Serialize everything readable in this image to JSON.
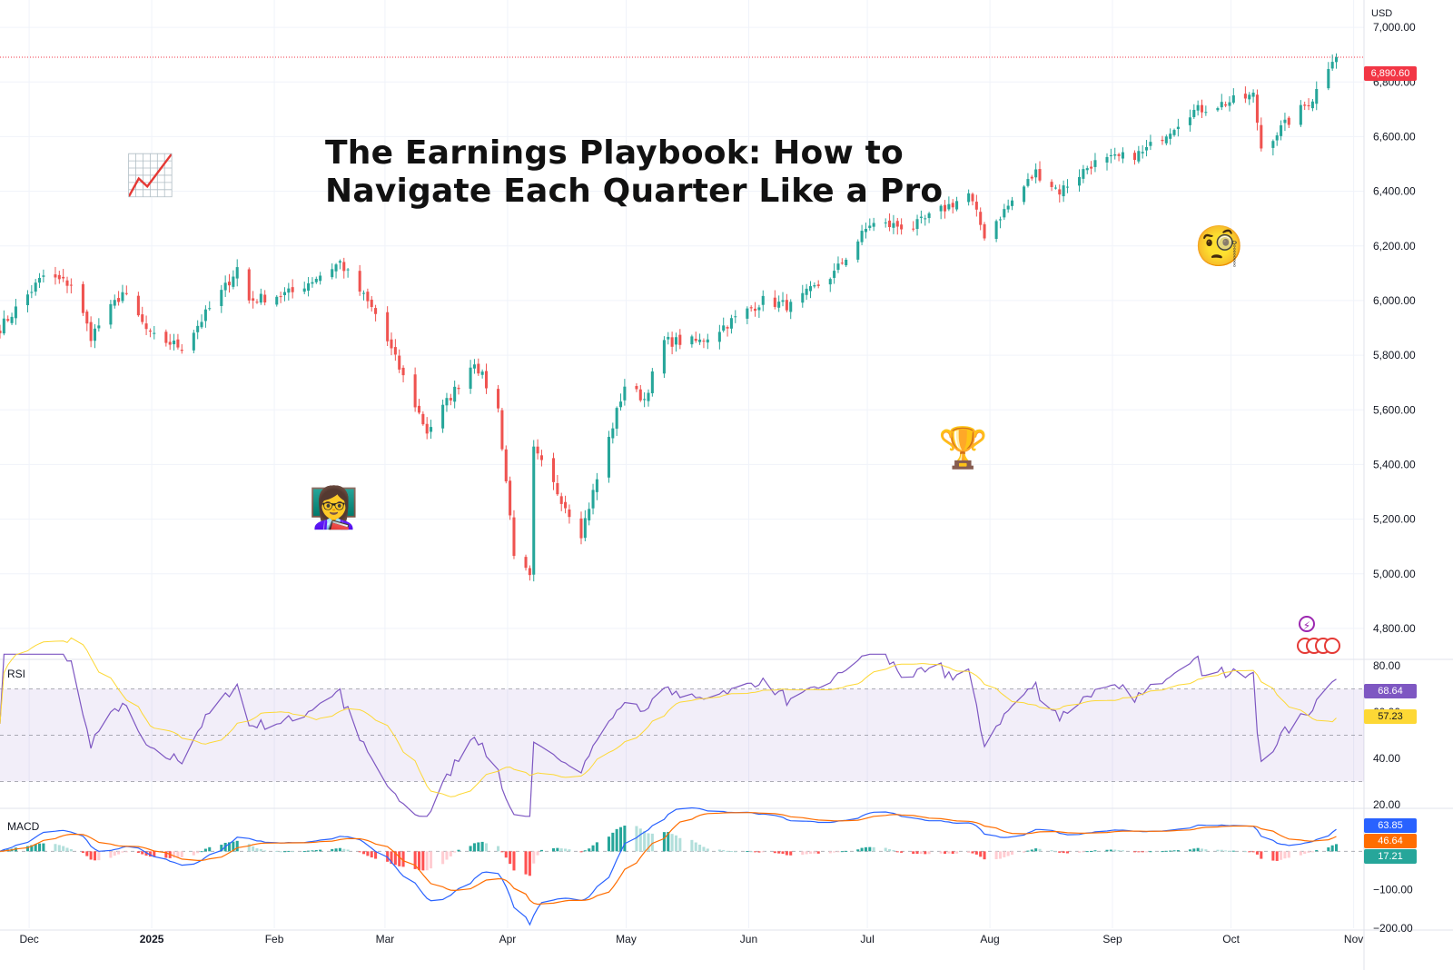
{
  "headline": {
    "line1": "The Earnings Playbook: How to",
    "line2": "Navigate Each Quarter Like a Pro"
  },
  "emojis": {
    "chart_increasing": "📈",
    "woman_teacher": "👩‍🏫",
    "trophy": "🏆",
    "face_with_monocle": "🧐"
  },
  "price_axis": {
    "currency": "USD",
    "ticks": [
      "7,000.00",
      "6,800.00",
      "6,600.00",
      "6,400.00",
      "6,200.00",
      "6,000.00",
      "5,800.00",
      "5,600.00",
      "5,400.00",
      "5,200.00",
      "5,000.00",
      "4,800.00"
    ],
    "last_price_label": "6,890.60"
  },
  "rsi": {
    "label": "RSI",
    "ticks": [
      "80.00",
      "60.00",
      "40.00",
      "20.00"
    ],
    "value_label": "68.64",
    "ma_label": "57.23"
  },
  "macd": {
    "label": "MACD",
    "ticks": [
      "−100.00",
      "−200.00"
    ],
    "macd_label": "63.85",
    "signal_label": "46.64",
    "hist_label": "17.21"
  },
  "time_axis": [
    "Dec",
    "2025",
    "Feb",
    "Mar",
    "Apr",
    "May",
    "Jun",
    "Jul",
    "Aug",
    "Sep",
    "Oct",
    "Nov"
  ],
  "colors": {
    "up": "#26a69a",
    "down": "#ef5350",
    "rsi": "#7e57c2",
    "rsi_ma": "#fdd835",
    "macd": "#2962ff",
    "signal": "#ff6d00",
    "last_price": "#f23645"
  },
  "chart_data": [
    {
      "type": "candlestick",
      "title": "",
      "ylim": [
        4700,
        7100
      ],
      "grid": true,
      "x_range": [
        "2024-11-25",
        "2025-11-05"
      ],
      "last_price": 6890.6,
      "anchors": [
        [
          "2024-11-25",
          5900
        ],
        [
          "2024-12-06",
          6090
        ],
        [
          "2024-12-13",
          6060
        ],
        [
          "2024-12-18",
          5870
        ],
        [
          "2024-12-26",
          6030
        ],
        [
          "2025-01-02",
          5870
        ],
        [
          "2025-01-10",
          5830
        ],
        [
          "2025-01-21",
          6050
        ],
        [
          "2025-01-24",
          6120
        ],
        [
          "2025-01-27",
          6000
        ],
        [
          "2025-02-07",
          6030
        ],
        [
          "2025-02-19",
          6140
        ],
        [
          "2025-02-28",
          5950
        ],
        [
          "2025-03-13",
          5520
        ],
        [
          "2025-03-25",
          5780
        ],
        [
          "2025-03-31",
          5600
        ],
        [
          "2025-04-04",
          5080
        ],
        [
          "2025-04-08",
          4980
        ],
        [
          "2025-04-09",
          5450
        ],
        [
          "2025-04-21",
          5150
        ],
        [
          "2025-05-02",
          5690
        ],
        [
          "2025-05-07",
          5640
        ],
        [
          "2025-05-12",
          5850
        ],
        [
          "2025-05-21",
          5850
        ],
        [
          "2025-06-06",
          6000
        ],
        [
          "2025-06-13",
          5980
        ],
        [
          "2025-06-24",
          6100
        ],
        [
          "2025-07-03",
          6280
        ],
        [
          "2025-07-14",
          6270
        ],
        [
          "2025-07-28",
          6390
        ],
        [
          "2025-08-01",
          6240
        ],
        [
          "2025-08-14",
          6470
        ],
        [
          "2025-08-20",
          6400
        ],
        [
          "2025-08-28",
          6500
        ],
        [
          "2025-09-10",
          6540
        ],
        [
          "2025-09-22",
          6690
        ],
        [
          "2025-10-08",
          6750
        ],
        [
          "2025-10-10",
          6560
        ],
        [
          "2025-10-23",
          6740
        ],
        [
          "2025-10-28",
          6890.6
        ]
      ]
    },
    {
      "type": "line",
      "title": "RSI",
      "ylim": [
        20,
        80
      ],
      "bands": [
        70,
        50,
        30
      ],
      "latest": {
        "rsi": 68.64,
        "ma": 57.23
      }
    },
    {
      "type": "bar",
      "title": "MACD",
      "ylim": [
        -200,
        100
      ],
      "latest": {
        "macd": 63.85,
        "signal": 46.64,
        "histogram": 17.21
      }
    }
  ]
}
